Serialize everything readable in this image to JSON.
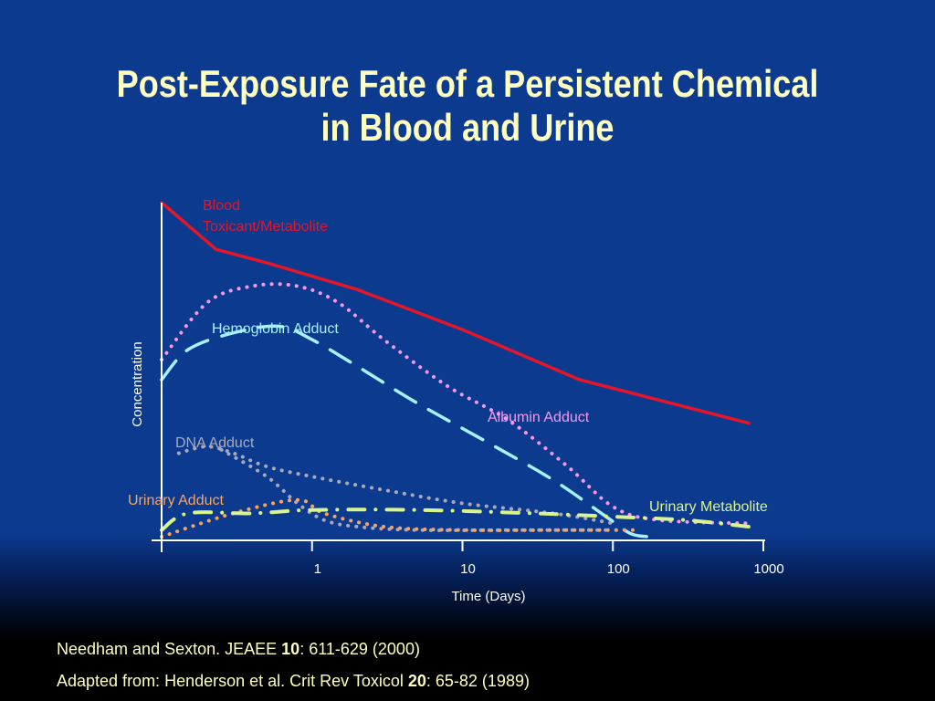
{
  "title": {
    "line1": "Post-Exposure Fate of a Persistent Chemical",
    "line2": "in Blood and Urine"
  },
  "colors": {
    "background": "#0c3a8e",
    "title": "#ffffc0",
    "blood": "#e4162a",
    "hemoglobin": "#a8f0ff",
    "albumin": "#f49af0",
    "dna": "#a9a9bb",
    "urinary_adduct": "#f5a560",
    "urinary_metabolite": "#d9f58c"
  },
  "chart_data": {
    "type": "line",
    "xlabel": "Time (Days)",
    "ylabel": "Concentration",
    "x_scale": "log",
    "xlim": [
      0.1,
      1000
    ],
    "x_ticks": [
      "1",
      "10",
      "100",
      "1000"
    ],
    "ylim": [
      0,
      100
    ],
    "y_ticks": [],
    "series": [
      {
        "name": "Blood Toxicant/Metabolite",
        "style": "solid",
        "color": "#e4162a",
        "label_lines": [
          "Blood",
          "Toxicant/Metabolite"
        ],
        "points": [
          [
            0.1,
            100
          ],
          [
            0.23,
            86
          ],
          [
            0.5,
            82
          ],
          [
            2,
            74
          ],
          [
            10,
            62
          ],
          [
            60,
            47
          ],
          [
            800,
            34
          ]
        ]
      },
      {
        "name": "Hemoglobin Adduct",
        "style": "dashed",
        "color": "#a8f0ff",
        "label_lines": [
          "Hemoglobin Adduct"
        ],
        "points": [
          [
            0.1,
            47
          ],
          [
            0.15,
            56
          ],
          [
            0.3,
            61
          ],
          [
            0.6,
            63
          ],
          [
            1,
            59
          ],
          [
            2,
            51
          ],
          [
            5,
            40
          ],
          [
            15,
            28
          ],
          [
            40,
            17
          ],
          [
            90,
            6
          ],
          [
            130,
            1
          ],
          [
            170,
            0
          ]
        ]
      },
      {
        "name": "Albumin Adduct",
        "style": "dotted",
        "color": "#f49af0",
        "label_lines": [
          "Albumin Adduct"
        ],
        "points": [
          [
            0.1,
            53
          ],
          [
            0.2,
            70
          ],
          [
            0.4,
            75
          ],
          [
            0.8,
            75
          ],
          [
            1.5,
            70
          ],
          [
            3,
            59
          ],
          [
            8,
            45
          ],
          [
            20,
            35
          ],
          [
            50,
            21
          ],
          [
            100,
            9
          ],
          [
            200,
            5
          ],
          [
            800,
            4
          ]
        ]
      },
      {
        "name": "DNA Adduct",
        "style": "dotted",
        "color": "#a9a9bb",
        "label_lines": [
          "DNA Adduct"
        ],
        "points": [
          [
            0.13,
            25
          ],
          [
            0.2,
            27
          ],
          [
            0.3,
            25
          ],
          [
            0.5,
            21
          ],
          [
            1,
            18
          ],
          [
            3,
            14
          ],
          [
            10,
            10
          ],
          [
            40,
            7
          ],
          [
            100,
            4
          ]
        ]
      },
      {
        "name": "DNA Adduct (fast component)",
        "style": "dotted",
        "color": "#a9a9bb",
        "label_lines": [],
        "points": [
          [
            0.25,
            26
          ],
          [
            0.5,
            18
          ],
          [
            0.8,
            10
          ],
          [
            1.2,
            5
          ],
          [
            2,
            3
          ],
          [
            5,
            2
          ],
          [
            30,
            2
          ],
          [
            100,
            2
          ]
        ]
      },
      {
        "name": "Urinary Adduct",
        "style": "dotted",
        "color": "#f5a560",
        "label_lines": [
          "Urinary Adduct"
        ],
        "points": [
          [
            0.1,
            0
          ],
          [
            0.3,
            7
          ],
          [
            0.8,
            11
          ],
          [
            1.2,
            7
          ],
          [
            3,
            3
          ],
          [
            10,
            2
          ],
          [
            50,
            2
          ],
          [
            150,
            2
          ]
        ]
      },
      {
        "name": "Urinary Metabolite",
        "style": "dashdot",
        "color": "#d9f58c",
        "label_lines": [
          "Urinary Metabolite"
        ],
        "points": [
          [
            0.1,
            2
          ],
          [
            0.15,
            7
          ],
          [
            0.4,
            7
          ],
          [
            1,
            8
          ],
          [
            5,
            8
          ],
          [
            30,
            7
          ],
          [
            100,
            6
          ],
          [
            300,
            5
          ],
          [
            800,
            3
          ]
        ]
      }
    ]
  },
  "citations": [
    {
      "pre": "Needham and Sexton. JEAEE ",
      "bold": "10",
      "post": ": 611-629 (2000)"
    },
    {
      "pre": "Adapted from:  Henderson et al. Crit Rev Toxicol  ",
      "bold": "20",
      "post": ": 65-82 (1989)"
    }
  ]
}
